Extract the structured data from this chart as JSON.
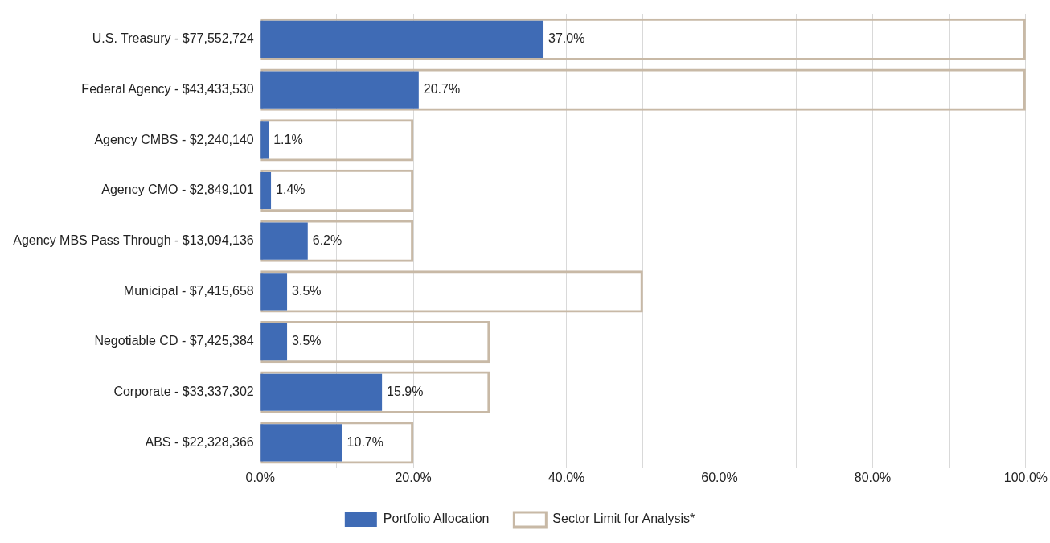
{
  "chart_data": {
    "type": "bar",
    "orientation": "horizontal",
    "categories": [
      "U.S. Treasury - $77,552,724",
      "Federal Agency - $43,433,530",
      "Agency CMBS - $2,240,140",
      "Agency CMO - $2,849,101",
      "Agency MBS Pass Through - $13,094,136",
      "Municipal - $7,415,658",
      "Negotiable CD - $7,425,384",
      "Corporate - $33,337,302",
      "ABS - $22,328,366"
    ],
    "series": [
      {
        "name": "Portfolio Allocation",
        "color": "#3f6bb5",
        "values": [
          37.0,
          20.7,
          1.1,
          1.4,
          6.2,
          3.5,
          3.5,
          15.9,
          10.7
        ],
        "value_labels": [
          "37.0%",
          "20.7%",
          "1.1%",
          "1.4%",
          "6.2%",
          "3.5%",
          "3.5%",
          "15.9%",
          "10.7%"
        ]
      },
      {
        "name": "Sector Limit for Analysis*",
        "color": "#c8b9a6",
        "values": [
          100,
          100,
          20,
          20,
          20,
          50,
          30,
          30,
          20
        ]
      }
    ],
    "xlim": [
      0,
      100
    ],
    "xticks": [
      {
        "value": 0,
        "label": "0.0%"
      },
      {
        "value": 10,
        "label": null
      },
      {
        "value": 20,
        "label": "20.0%"
      },
      {
        "value": 30,
        "label": null
      },
      {
        "value": 40,
        "label": "40.0%"
      },
      {
        "value": 50,
        "label": null
      },
      {
        "value": 60,
        "label": "60.0%"
      },
      {
        "value": 70,
        "label": null
      },
      {
        "value": 80,
        "label": "80.0%"
      },
      {
        "value": 90,
        "label": null
      },
      {
        "value": 100,
        "label": "100.0%"
      }
    ],
    "grid": "x",
    "legend": "bottom"
  }
}
